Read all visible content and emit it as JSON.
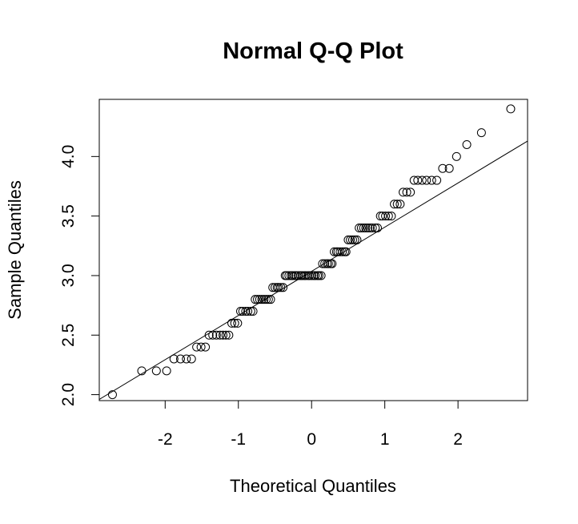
{
  "chart_data": {
    "type": "scatter",
    "title": "Normal Q-Q Plot",
    "xlabel": "Theoretical Quantiles",
    "ylabel": "Sample Quantiles",
    "xlim": [
      -2.9,
      2.95
    ],
    "ylim": [
      1.95,
      4.48
    ],
    "x_ticks": [
      -2,
      -1,
      0,
      1,
      2
    ],
    "x_tick_labels": [
      "-2",
      "-1",
      "0",
      "1",
      "2"
    ],
    "y_ticks": [
      2.0,
      2.5,
      3.0,
      3.5,
      4.0
    ],
    "y_tick_labels": [
      "2.0",
      "2.5",
      "3.0",
      "3.5",
      "4.0"
    ],
    "grid": false,
    "legend": "none",
    "reference_line": {
      "x": [
        -2.9,
        2.95
      ],
      "y": [
        1.96,
        4.13
      ]
    },
    "series": [
      {
        "marker": "open-circle",
        "points": [
          [
            -2.72,
            2.0
          ],
          [
            -2.32,
            2.2
          ],
          [
            -2.12,
            2.2
          ],
          [
            -1.98,
            2.2
          ],
          [
            -1.88,
            2.3
          ],
          [
            -1.79,
            2.3
          ],
          [
            -1.71,
            2.3
          ],
          [
            -1.64,
            2.3
          ],
          [
            -1.57,
            2.4
          ],
          [
            -1.51,
            2.4
          ],
          [
            -1.45,
            2.4
          ],
          [
            -1.4,
            2.5
          ],
          [
            -1.35,
            2.5
          ],
          [
            -1.3,
            2.5
          ],
          [
            -1.25,
            2.5
          ],
          [
            -1.21,
            2.5
          ],
          [
            -1.17,
            2.5
          ],
          [
            -1.13,
            2.5
          ],
          [
            -1.09,
            2.6
          ],
          [
            -1.05,
            2.6
          ],
          [
            -1.01,
            2.6
          ],
          [
            -0.97,
            2.7
          ],
          [
            -0.94,
            2.7
          ],
          [
            -0.9,
            2.7
          ],
          [
            -0.87,
            2.7
          ],
          [
            -0.83,
            2.7
          ],
          [
            -0.8,
            2.7
          ],
          [
            -0.77,
            2.8
          ],
          [
            -0.74,
            2.8
          ],
          [
            -0.71,
            2.8
          ],
          [
            -0.68,
            2.8
          ],
          [
            -0.65,
            2.8
          ],
          [
            -0.62,
            2.8
          ],
          [
            -0.59,
            2.8
          ],
          [
            -0.56,
            2.8
          ],
          [
            -0.53,
            2.9
          ],
          [
            -0.5,
            2.9
          ],
          [
            -0.47,
            2.9
          ],
          [
            -0.45,
            2.9
          ],
          [
            -0.42,
            2.9
          ],
          [
            -0.39,
            2.9
          ],
          [
            -0.36,
            3.0
          ],
          [
            -0.34,
            3.0
          ],
          [
            -0.31,
            3.0
          ],
          [
            -0.28,
            3.0
          ],
          [
            -0.26,
            3.0
          ],
          [
            -0.23,
            3.0
          ],
          [
            -0.21,
            3.0
          ],
          [
            -0.18,
            3.0
          ],
          [
            -0.15,
            3.0
          ],
          [
            -0.13,
            3.0
          ],
          [
            -0.1,
            3.0
          ],
          [
            -0.08,
            3.0
          ],
          [
            -0.05,
            3.0
          ],
          [
            -0.03,
            3.0
          ],
          [
            0.0,
            3.0
          ],
          [
            0.03,
            3.0
          ],
          [
            0.05,
            3.0
          ],
          [
            0.08,
            3.0
          ],
          [
            0.1,
            3.0
          ],
          [
            0.13,
            3.0
          ],
          [
            0.15,
            3.1
          ],
          [
            0.18,
            3.1
          ],
          [
            0.21,
            3.1
          ],
          [
            0.23,
            3.1
          ],
          [
            0.26,
            3.1
          ],
          [
            0.28,
            3.1
          ],
          [
            0.31,
            3.2
          ],
          [
            0.34,
            3.2
          ],
          [
            0.36,
            3.2
          ],
          [
            0.39,
            3.2
          ],
          [
            0.42,
            3.2
          ],
          [
            0.45,
            3.2
          ],
          [
            0.47,
            3.2
          ],
          [
            0.5,
            3.3
          ],
          [
            0.53,
            3.3
          ],
          [
            0.56,
            3.3
          ],
          [
            0.59,
            3.3
          ],
          [
            0.62,
            3.3
          ],
          [
            0.65,
            3.4
          ],
          [
            0.68,
            3.4
          ],
          [
            0.71,
            3.4
          ],
          [
            0.74,
            3.4
          ],
          [
            0.77,
            3.4
          ],
          [
            0.8,
            3.4
          ],
          [
            0.83,
            3.4
          ],
          [
            0.87,
            3.4
          ],
          [
            0.9,
            3.4
          ],
          [
            0.94,
            3.5
          ],
          [
            0.97,
            3.5
          ],
          [
            1.01,
            3.5
          ],
          [
            1.05,
            3.5
          ],
          [
            1.09,
            3.5
          ],
          [
            1.13,
            3.6
          ],
          [
            1.17,
            3.6
          ],
          [
            1.21,
            3.6
          ],
          [
            1.25,
            3.7
          ],
          [
            1.3,
            3.7
          ],
          [
            1.35,
            3.7
          ],
          [
            1.4,
            3.8
          ],
          [
            1.45,
            3.8
          ],
          [
            1.51,
            3.8
          ],
          [
            1.57,
            3.8
          ],
          [
            1.64,
            3.8
          ],
          [
            1.71,
            3.8
          ],
          [
            1.79,
            3.9
          ],
          [
            1.88,
            3.9
          ],
          [
            1.98,
            4.0
          ],
          [
            2.12,
            4.1
          ],
          [
            2.32,
            4.2
          ],
          [
            2.72,
            4.4
          ]
        ]
      }
    ]
  }
}
